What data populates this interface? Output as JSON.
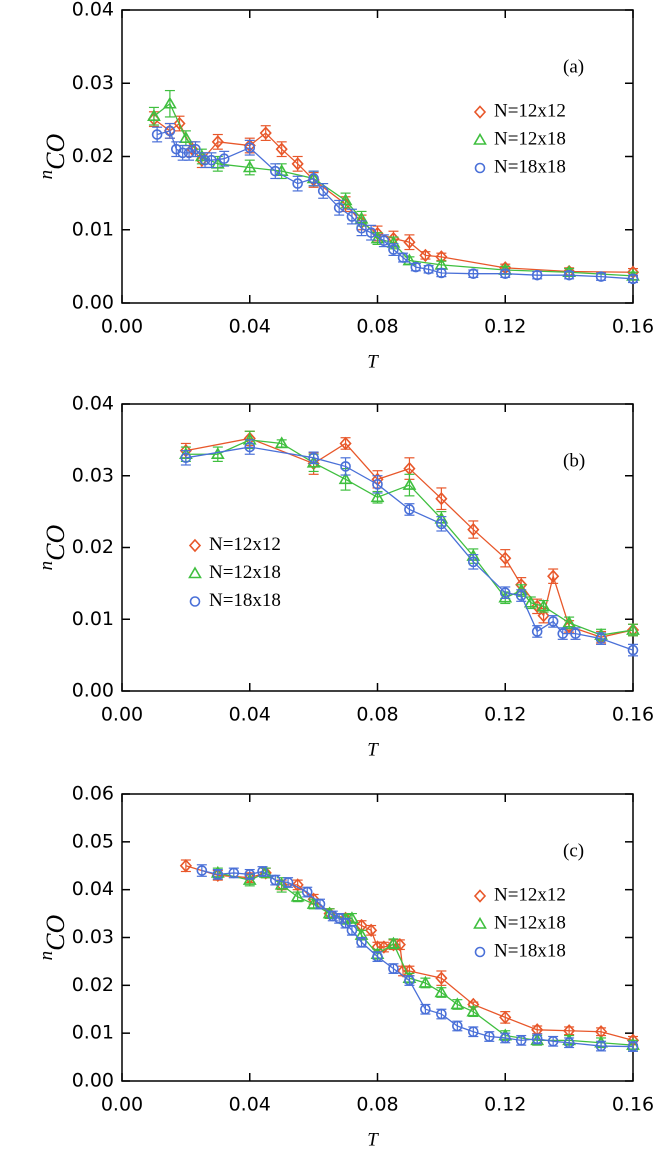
{
  "chart_data": [
    {
      "type": "line",
      "annotation": "(a)",
      "xlabel": "T",
      "ylabel": "nCO",
      "legend": "upper right",
      "xlim": [
        0,
        0.16
      ],
      "xticks": [
        {
          "value": 0,
          "label": "0.00"
        },
        0.04,
        0.08,
        0.12,
        0.16
      ],
      "ylim": [
        0,
        0.04
      ],
      "yticks": [
        {
          "value": 0,
          "label": "0.00"
        },
        0.01,
        0.02,
        0.03,
        0.04
      ],
      "series": [
        {
          "name": "N=12x12",
          "color": "#e8572a",
          "marker": "diamond",
          "x": [
            0.01,
            0.015,
            0.018,
            0.022,
            0.025,
            0.03,
            0.04,
            0.045,
            0.05,
            0.055,
            0.06,
            0.07,
            0.075,
            0.08,
            0.085,
            0.09,
            0.095,
            0.1,
            0.12,
            0.14,
            0.16
          ],
          "values": [
            0.0251,
            0.0235,
            0.0245,
            0.021,
            0.0195,
            0.022,
            0.0215,
            0.0232,
            0.021,
            0.019,
            0.0168,
            0.0135,
            0.011,
            0.0095,
            0.0088,
            0.0083,
            0.0065,
            0.0063,
            0.0048,
            0.0043,
            0.0042
          ],
          "errors": [
            0.001,
            0.001,
            0.001,
            0.001,
            0.001,
            0.001,
            0.001,
            0.001,
            0.001,
            0.001,
            0.001,
            0.001,
            0.001,
            0.001,
            0.001,
            0.001,
            0.0005,
            0.0005,
            0.0005,
            0.0005,
            0.0005
          ]
        },
        {
          "name": "N=12x18",
          "color": "#3fbf3f",
          "marker": "triangle",
          "x": [
            0.01,
            0.015,
            0.02,
            0.025,
            0.03,
            0.04,
            0.05,
            0.06,
            0.07,
            0.075,
            0.08,
            0.085,
            0.09,
            0.1,
            0.12,
            0.14,
            0.16
          ],
          "values": [
            0.0255,
            0.0272,
            0.0225,
            0.02,
            0.019,
            0.0185,
            0.018,
            0.017,
            0.014,
            0.0115,
            0.0088,
            0.0082,
            0.0058,
            0.0052,
            0.0045,
            0.0042,
            0.0037
          ],
          "errors": [
            0.0012,
            0.0018,
            0.001,
            0.001,
            0.001,
            0.001,
            0.001,
            0.001,
            0.001,
            0.001,
            0.0008,
            0.0008,
            0.0005,
            0.0005,
            0.0005,
            0.0005,
            0.0005
          ]
        },
        {
          "name": "N=18x18",
          "color": "#4a70d8",
          "marker": "circle",
          "x": [
            0.011,
            0.015,
            0.017,
            0.019,
            0.021,
            0.023,
            0.026,
            0.028,
            0.032,
            0.04,
            0.048,
            0.055,
            0.06,
            0.063,
            0.068,
            0.072,
            0.075,
            0.078,
            0.082,
            0.085,
            0.088,
            0.092,
            0.096,
            0.1,
            0.11,
            0.12,
            0.13,
            0.14,
            0.15,
            0.16
          ],
          "values": [
            0.023,
            0.0235,
            0.021,
            0.0205,
            0.0205,
            0.021,
            0.0195,
            0.0195,
            0.0197,
            0.0212,
            0.018,
            0.0163,
            0.017,
            0.0153,
            0.013,
            0.0118,
            0.0102,
            0.0096,
            0.0085,
            0.0073,
            0.0062,
            0.0049,
            0.0046,
            0.0041,
            0.004,
            0.004,
            0.0038,
            0.0038,
            0.0036,
            0.0033
          ],
          "errors": [
            0.001,
            0.001,
            0.001,
            0.001,
            0.001,
            0.001,
            0.001,
            0.001,
            0.001,
            0.001,
            0.001,
            0.001,
            0.001,
            0.001,
            0.001,
            0.001,
            0.001,
            0.001,
            0.0008,
            0.0008,
            0.0006,
            0.0005,
            0.0005,
            0.0005,
            0.0005,
            0.0005,
            0.0005,
            0.0005,
            0.0005,
            0.0005
          ]
        }
      ]
    },
    {
      "type": "line",
      "annotation": "(b)",
      "xlabel": "T",
      "ylabel": "nCO",
      "legend": "center left",
      "xlim": [
        0,
        0.16
      ],
      "xticks": [
        {
          "value": 0,
          "label": "0.00"
        },
        0.04,
        0.08,
        0.12,
        0.16
      ],
      "ylim": [
        0,
        0.04
      ],
      "yticks": [
        {
          "value": 0,
          "label": "0.00"
        },
        0.01,
        0.02,
        0.03,
        0.04
      ],
      "series": [
        {
          "name": "N=12x12",
          "color": "#e8572a",
          "marker": "diamond",
          "x": [
            0.02,
            0.04,
            0.06,
            0.07,
            0.08,
            0.09,
            0.1,
            0.11,
            0.12,
            0.125,
            0.13,
            0.132,
            0.135,
            0.14,
            0.15,
            0.16
          ],
          "values": [
            0.0335,
            0.0352,
            0.0317,
            0.0345,
            0.0295,
            0.031,
            0.0268,
            0.0225,
            0.0185,
            0.0148,
            0.0118,
            0.0105,
            0.016,
            0.009,
            0.0075,
            0.0085
          ],
          "errors": [
            0.001,
            0.001,
            0.0015,
            0.0008,
            0.0012,
            0.0015,
            0.0015,
            0.0012,
            0.0012,
            0.001,
            0.001,
            0.001,
            0.001,
            0.0008,
            0.0008,
            0.0008
          ]
        },
        {
          "name": "N=12x18",
          "color": "#3fbf3f",
          "marker": "triangle",
          "x": [
            0.02,
            0.03,
            0.04,
            0.05,
            0.06,
            0.07,
            0.08,
            0.09,
            0.1,
            0.11,
            0.12,
            0.125,
            0.128,
            0.132,
            0.14,
            0.15,
            0.16
          ],
          "values": [
            0.033,
            0.033,
            0.035,
            0.0345,
            0.0318,
            0.0295,
            0.027,
            0.0287,
            0.024,
            0.0188,
            0.013,
            0.014,
            0.0123,
            0.0118,
            0.0095,
            0.0078,
            0.0085
          ],
          "errors": [
            0.001,
            0.001,
            0.0012,
            0.0005,
            0.0012,
            0.0015,
            0.0008,
            0.0015,
            0.001,
            0.001,
            0.0008,
            0.0008,
            0.0008,
            0.0008,
            0.0008,
            0.0008,
            0.0008
          ]
        },
        {
          "name": "N=18x18",
          "color": "#4a70d8",
          "marker": "circle",
          "x": [
            0.02,
            0.04,
            0.06,
            0.07,
            0.08,
            0.09,
            0.1,
            0.11,
            0.12,
            0.125,
            0.13,
            0.135,
            0.138,
            0.142,
            0.15,
            0.16
          ],
          "values": [
            0.0325,
            0.034,
            0.0325,
            0.0313,
            0.0288,
            0.0253,
            0.0233,
            0.018,
            0.0137,
            0.0133,
            0.0083,
            0.0097,
            0.008,
            0.008,
            0.0073,
            0.0057
          ],
          "errors": [
            0.001,
            0.001,
            0.0008,
            0.0012,
            0.0012,
            0.0008,
            0.001,
            0.001,
            0.0008,
            0.0008,
            0.0008,
            0.0008,
            0.0008,
            0.0008,
            0.0008,
            0.0008
          ]
        }
      ]
    },
    {
      "type": "line",
      "annotation": "(c)",
      "xlabel": "T",
      "ylabel": "nCO",
      "legend": "upper right",
      "xlim": [
        0,
        0.16
      ],
      "xticks": [
        {
          "value": 0,
          "label": "0.00"
        },
        0.04,
        0.08,
        0.12,
        0.16
      ],
      "ylim": [
        0,
        0.06
      ],
      "yticks": [
        {
          "value": 0,
          "label": "0.00"
        },
        0.01,
        0.02,
        0.03,
        0.04,
        0.05,
        0.06
      ],
      "series": [
        {
          "name": "N=12x12",
          "color": "#e8572a",
          "marker": "diamond",
          "x": [
            0.02,
            0.03,
            0.04,
            0.045,
            0.05,
            0.055,
            0.06,
            0.065,
            0.07,
            0.075,
            0.078,
            0.08,
            0.082,
            0.085,
            0.087,
            0.088,
            0.09,
            0.1,
            0.11,
            0.12,
            0.13,
            0.14,
            0.15,
            0.16
          ],
          "values": [
            0.045,
            0.043,
            0.0425,
            0.0435,
            0.041,
            0.041,
            0.038,
            0.035,
            0.034,
            0.0325,
            0.0315,
            0.028,
            0.028,
            0.0285,
            0.0285,
            0.023,
            0.023,
            0.0215,
            0.016,
            0.0133,
            0.0107,
            0.0105,
            0.0103,
            0.0085
          ],
          "errors": [
            0.0012,
            0.001,
            0.001,
            0.001,
            0.001,
            0.001,
            0.001,
            0.001,
            0.001,
            0.001,
            0.001,
            0.001,
            0.001,
            0.001,
            0.001,
            0.001,
            0.001,
            0.0015,
            0.0005,
            0.0012,
            0.0008,
            0.0008,
            0.0008,
            0.0008
          ]
        },
        {
          "name": "N=12x18",
          "color": "#3fbf3f",
          "marker": "triangle",
          "x": [
            0.03,
            0.04,
            0.045,
            0.05,
            0.055,
            0.06,
            0.065,
            0.07,
            0.072,
            0.075,
            0.08,
            0.085,
            0.09,
            0.095,
            0.1,
            0.105,
            0.11,
            0.12,
            0.13,
            0.14,
            0.15,
            0.16
          ],
          "values": [
            0.0435,
            0.042,
            0.0435,
            0.041,
            0.0385,
            0.037,
            0.035,
            0.0338,
            0.034,
            0.0305,
            0.0265,
            0.0287,
            0.0215,
            0.0205,
            0.0185,
            0.016,
            0.0145,
            0.0095,
            0.0085,
            0.0085,
            0.008,
            0.0075
          ],
          "errors": [
            0.001,
            0.0012,
            0.001,
            0.0015,
            0.001,
            0.001,
            0.001,
            0.001,
            0.001,
            0.001,
            0.001,
            0.001,
            0.001,
            0.001,
            0.001,
            0.001,
            0.001,
            0.001,
            0.001,
            0.001,
            0.001,
            0.001
          ]
        },
        {
          "name": "N=18x18",
          "color": "#4a70d8",
          "marker": "circle",
          "x": [
            0.025,
            0.03,
            0.035,
            0.04,
            0.044,
            0.048,
            0.052,
            0.058,
            0.062,
            0.066,
            0.068,
            0.07,
            0.072,
            0.075,
            0.08,
            0.085,
            0.09,
            0.095,
            0.1,
            0.105,
            0.11,
            0.115,
            0.12,
            0.125,
            0.13,
            0.135,
            0.14,
            0.15,
            0.16
          ],
          "values": [
            0.044,
            0.0432,
            0.0435,
            0.0432,
            0.0438,
            0.042,
            0.0415,
            0.0395,
            0.037,
            0.0345,
            0.034,
            0.033,
            0.0315,
            0.029,
            0.026,
            0.0235,
            0.021,
            0.015,
            0.014,
            0.0115,
            0.0103,
            0.0093,
            0.009,
            0.0085,
            0.0088,
            0.0083,
            0.008,
            0.0073,
            0.0072
          ],
          "errors": [
            0.0012,
            0.001,
            0.001,
            0.001,
            0.001,
            0.001,
            0.001,
            0.001,
            0.001,
            0.001,
            0.001,
            0.001,
            0.001,
            0.001,
            0.001,
            0.001,
            0.001,
            0.001,
            0.001,
            0.001,
            0.001,
            0.001,
            0.001,
            0.001,
            0.001,
            0.001,
            0.001,
            0.001,
            0.001
          ]
        }
      ]
    }
  ]
}
